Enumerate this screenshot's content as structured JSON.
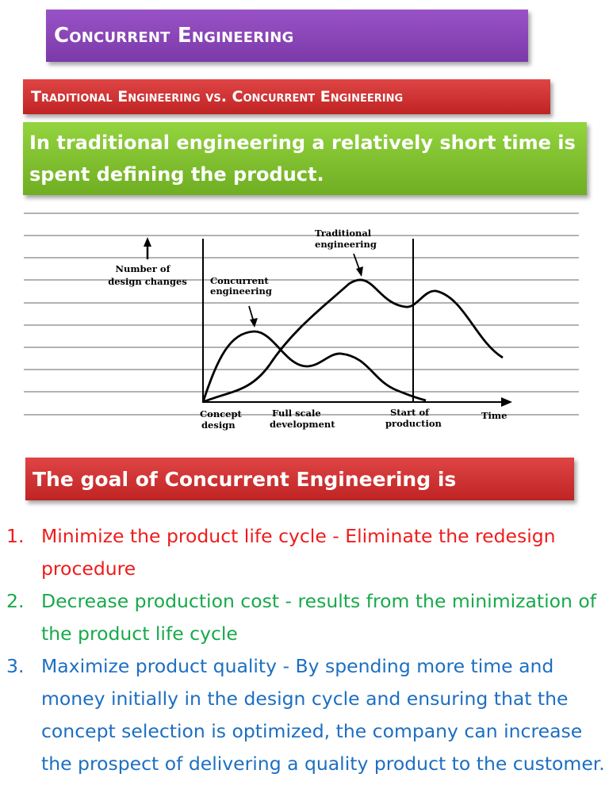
{
  "title": "Concurrent Engineering",
  "subtitle": "Traditional Engineering vs.  Concurrent Engineering",
  "intro": "In traditional engineering a relatively short time is spent defining the product.",
  "diagram": {
    "y_axis_label_line1": "Number of",
    "y_axis_label_line2": "design changes",
    "concurrent_label_line1": "Concurrent",
    "concurrent_label_line2": "engineering",
    "traditional_label_line1": "Traditional",
    "traditional_label_line2": "engineering",
    "x_labels": [
      {
        "line1": "Concept",
        "line2": "design"
      },
      {
        "line1": "Full scale",
        "line2": "development"
      },
      {
        "line1": "Start of",
        "line2": "production"
      }
    ],
    "time_label": "Time"
  },
  "goal_heading": "The goal of Concurrent Engineering is",
  "goals": [
    {
      "number": "1.",
      "text": "Minimize the product life cycle - Eliminate the redesign procedure",
      "color": "#ee1c1c"
    },
    {
      "number": "2.",
      "text": "Decrease production cost - results from the minimization of the product life cycle",
      "color": "#18a94a"
    },
    {
      "number": "3.",
      "text": "Maximize product quality - By spending more time and money initially in the design cycle and ensuring that the concept selection is optimized, the company can increase the prospect of delivering a quality product to the customer.",
      "color": "#1d6fc1"
    }
  ],
  "colors": {
    "title_bar": "#8b46b8",
    "red_bar": "#d23232",
    "green_box": "#7fc02e"
  }
}
